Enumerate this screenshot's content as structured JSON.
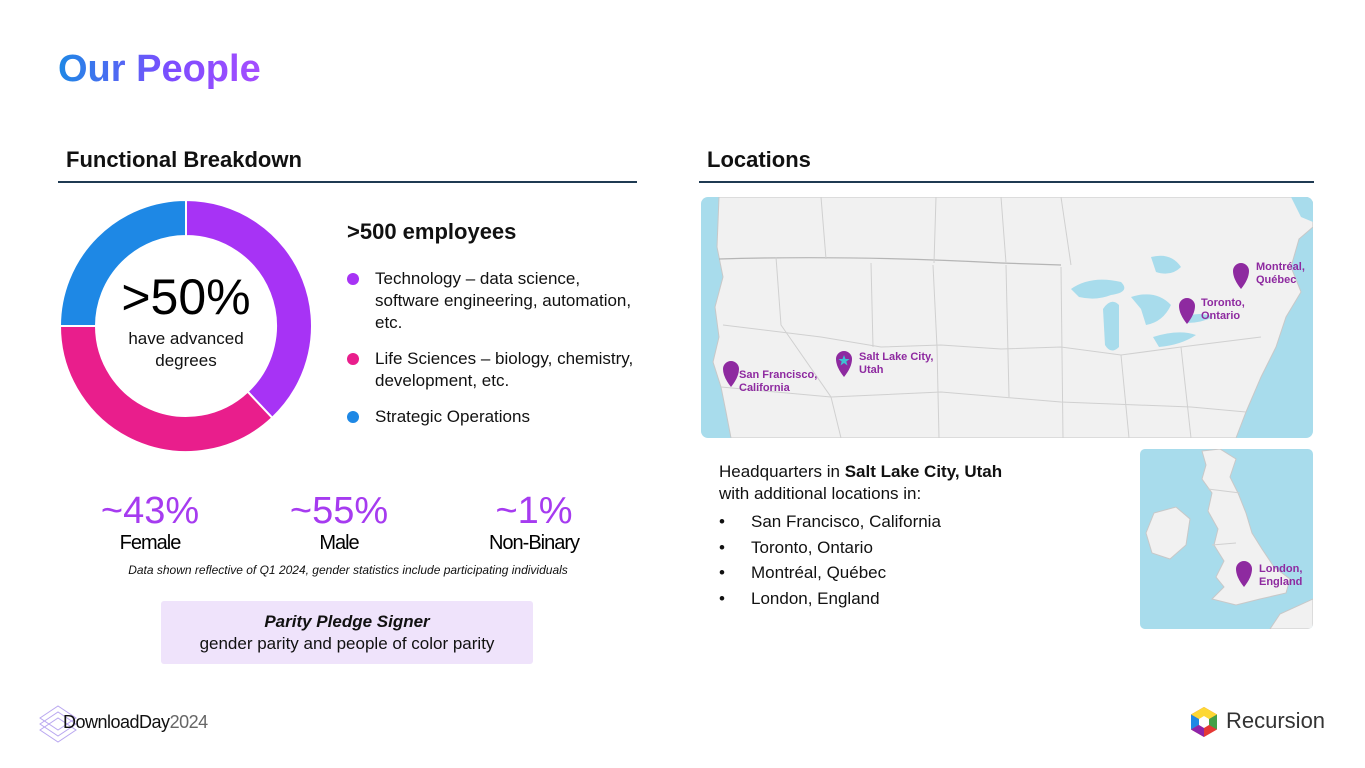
{
  "page": {
    "title": "Our People"
  },
  "functional": {
    "heading": "Functional Breakdown",
    "donut": {
      "big": ">50%",
      "sub_line1": "have advanced",
      "sub_line2": "degrees",
      "segments": [
        {
          "name": "Technology",
          "fraction": 0.38,
          "color": "#a733f5"
        },
        {
          "name": "Life Sciences",
          "fraction": 0.37,
          "color": "#e91e8c"
        },
        {
          "name": "Strategic Operations",
          "fraction": 0.25,
          "color": "#1e88e5"
        }
      ]
    },
    "employees": ">500 employees",
    "legend": [
      {
        "text": "Technology – data science, software engineering, automation, etc.",
        "color": "#a733f5"
      },
      {
        "text": "Life Sciences – biology, chemistry, development, etc.",
        "color": "#e91e8c"
      },
      {
        "text": "Strategic Operations",
        "color": "#1e88e5"
      }
    ],
    "stats": [
      {
        "value": "~43%",
        "label": "Female"
      },
      {
        "value": "~55%",
        "label": "Male"
      },
      {
        "value": "~1%",
        "label": "Non-Binary"
      }
    ],
    "note": "Data shown reflective of Q1 2024, gender statistics include participating individuals",
    "pledge": {
      "title": "Parity Pledge Signer",
      "sub": "gender parity and people of color parity"
    }
  },
  "locations": {
    "heading": "Locations",
    "pins": {
      "sf": "San Francisco, California",
      "slc": "Salt Lake City, Utah",
      "toronto": "Toronto, Ontario",
      "montreal": "Montréal, Québec",
      "london": "London, England"
    },
    "hq_prefix": "Headquarters in ",
    "hq_city": "Salt Lake City, Utah",
    "hq_suffix": "with additional locations in:",
    "list": [
      "San Francisco, California",
      "Toronto, Ontario",
      "Montréal, Québec",
      "London, England"
    ],
    "bullet": "•"
  },
  "footer": {
    "dd_brand": "DownloadDay",
    "dd_year": "2024",
    "recursion": "Recursion"
  },
  "colors": {
    "pin": "#8e2aa0",
    "water": "#a8dcec",
    "land": "#f1f1f1"
  }
}
